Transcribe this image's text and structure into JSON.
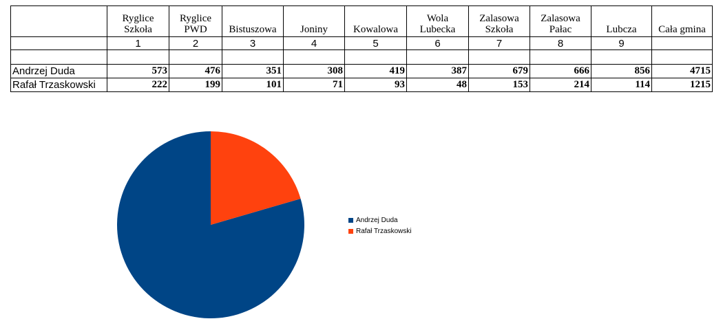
{
  "table": {
    "headers": [
      {
        "line1": "",
        "line2": ""
      },
      {
        "line1": "Ryglice",
        "line2": "Szkoła"
      },
      {
        "line1": "Ryglice",
        "line2": "PWD"
      },
      {
        "line1": "",
        "line2": "Bistuszowa"
      },
      {
        "line1": "",
        "line2": "Joniny"
      },
      {
        "line1": "",
        "line2": "Kowalowa"
      },
      {
        "line1": "Wola",
        "line2": "Lubecka"
      },
      {
        "line1": "Zalasowa",
        "line2": "Szkoła"
      },
      {
        "line1": "Zalasowa",
        "line2": "Pałac"
      },
      {
        "line1": "",
        "line2": "Lubcza"
      },
      {
        "line1": "",
        "line2": "Cała gmina"
      }
    ],
    "numbers": [
      "",
      "1",
      "2",
      "3",
      "4",
      "5",
      "6",
      "7",
      "8",
      "9",
      ""
    ],
    "rows": [
      {
        "name": "Andrzej Duda",
        "values": [
          "573",
          "476",
          "351",
          "308",
          "419",
          "387",
          "679",
          "666",
          "856",
          "4715"
        ]
      },
      {
        "name": "Rafał Trzaskowski",
        "values": [
          "222",
          "199",
          "101",
          "71",
          "93",
          "48",
          "153",
          "214",
          "114",
          "1215"
        ]
      }
    ]
  },
  "chart_data": {
    "type": "pie",
    "categories": [
      "Andrzej Duda",
      "Rafał Trzaskowski"
    ],
    "values": [
      4715,
      1215
    ],
    "colors": [
      "#004586",
      "#ff420e"
    ],
    "legend_position": "right"
  }
}
